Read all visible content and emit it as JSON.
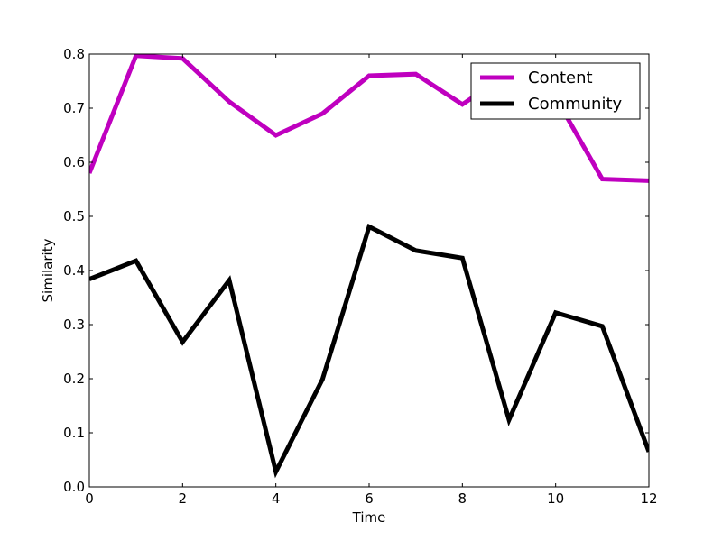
{
  "chart_data": {
    "type": "line",
    "title": "",
    "xlabel": "Time",
    "ylabel": "Similarity",
    "xlim": [
      0,
      12
    ],
    "ylim": [
      0,
      0.8
    ],
    "grid": false,
    "legend_position": "top-right",
    "x_ticks": [
      "0",
      "2",
      "4",
      "6",
      "8",
      "10",
      "12"
    ],
    "y_ticks": [
      "0.0",
      "0.1",
      "0.2",
      "0.3",
      "0.4",
      "0.5",
      "0.6",
      "0.7",
      "0.8"
    ],
    "x": [
      0,
      1,
      2,
      3,
      4,
      5,
      6,
      7,
      8,
      9,
      10,
      11,
      12
    ],
    "series": [
      {
        "name": "Content",
        "color": "#bf00bf",
        "values": [
          0.58,
          0.797,
          0.792,
          0.712,
          0.65,
          0.69,
          0.76,
          0.763,
          0.707,
          0.765,
          0.72,
          0.569,
          0.566
        ]
      },
      {
        "name": "Community",
        "color": "#000000",
        "values": [
          0.384,
          0.418,
          0.268,
          0.382,
          0.028,
          0.199,
          0.481,
          0.437,
          0.423,
          0.124,
          0.322,
          0.297,
          0.065
        ]
      }
    ]
  }
}
